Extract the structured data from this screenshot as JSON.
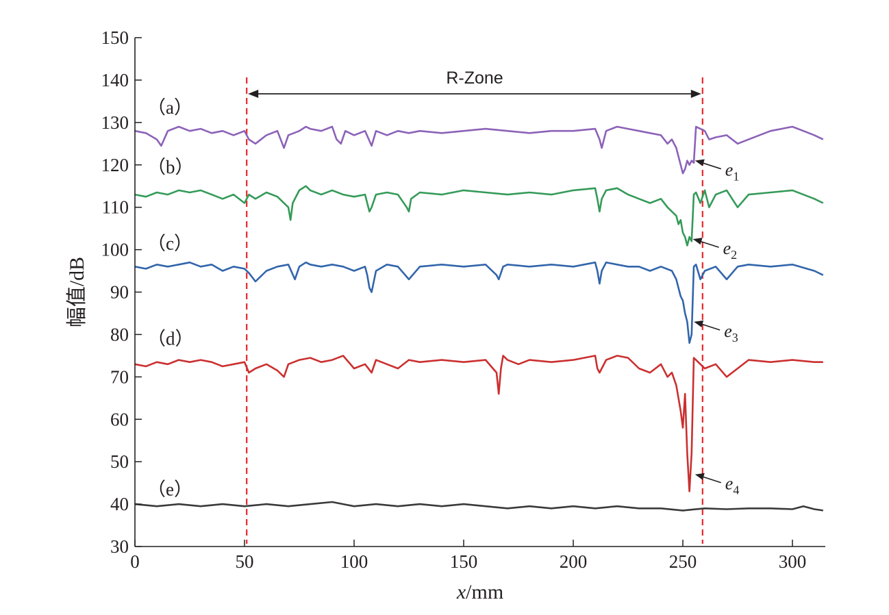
{
  "chart_data": {
    "type": "line",
    "xlabel_var": "x",
    "xlabel_unit": "/mm",
    "ylabel": "幅值/dB",
    "xlim": [
      0,
      315
    ],
    "ylim": [
      30,
      150
    ],
    "xticks": [
      0,
      50,
      100,
      150,
      200,
      250,
      300
    ],
    "yticks": [
      30,
      40,
      50,
      60,
      70,
      80,
      90,
      100,
      110,
      120,
      130,
      140,
      150
    ],
    "grid": false,
    "rzone": {
      "label": "R-Zone",
      "x_start": 51,
      "x_end": 259,
      "color": "#e8262a"
    },
    "series": [
      {
        "label": "（a）",
        "color": "#8c62b8",
        "label_value": 133.5,
        "defect": {
          "letter": "e",
          "sub": "1",
          "x": 254,
          "y": 121
        },
        "x": [
          0,
          5,
          10,
          12,
          15,
          20,
          25,
          30,
          35,
          40,
          45,
          50,
          52,
          55,
          60,
          65,
          68,
          70,
          75,
          78,
          80,
          85,
          90,
          92,
          94,
          96,
          100,
          105,
          108,
          110,
          115,
          120,
          125,
          130,
          140,
          150,
          160,
          170,
          180,
          190,
          200,
          210,
          212,
          213,
          215,
          220,
          225,
          230,
          235,
          240,
          243,
          245,
          247,
          248,
          250,
          251,
          252,
          253,
          254,
          255,
          256,
          258,
          260,
          262,
          265,
          270,
          275,
          280,
          290,
          300,
          305,
          310,
          314
        ],
        "y": [
          128,
          127.5,
          126,
          124.5,
          128,
          129,
          128,
          128.5,
          127.5,
          128,
          127,
          128,
          126,
          125,
          127,
          128,
          124,
          127,
          128,
          129,
          128.5,
          128,
          129,
          126,
          125,
          128,
          127,
          128,
          124.5,
          128,
          127,
          128,
          127.5,
          128,
          127.5,
          128,
          128.5,
          128,
          127.5,
          128,
          128,
          128.5,
          126,
          124,
          128,
          129,
          128.5,
          128,
          127.5,
          127,
          125,
          126,
          124,
          122,
          118,
          119,
          121,
          120,
          121,
          120.5,
          129,
          128.5,
          128,
          126,
          126.5,
          127,
          125,
          126,
          128,
          129,
          128,
          127,
          126
        ]
      },
      {
        "label": "（b）",
        "color": "#349a58",
        "label_value": 119.5,
        "defect": {
          "letter": "e",
          "sub": "2",
          "x": 253,
          "y": 102.5
        },
        "x": [
          0,
          5,
          10,
          15,
          20,
          25,
          30,
          35,
          40,
          45,
          50,
          52,
          55,
          60,
          65,
          70,
          71,
          72,
          75,
          78,
          80,
          85,
          90,
          95,
          100,
          105,
          107,
          108,
          110,
          115,
          120,
          124,
          125,
          126,
          130,
          140,
          150,
          160,
          170,
          180,
          190,
          200,
          210,
          211,
          212,
          213,
          215,
          220,
          225,
          230,
          235,
          240,
          243,
          245,
          247,
          248,
          249,
          250,
          251,
          252,
          253,
          254,
          255,
          256,
          258,
          260,
          262,
          265,
          270,
          275,
          280,
          290,
          300,
          310,
          314
        ],
        "y": [
          113,
          112.5,
          113.5,
          113,
          114,
          113.5,
          114,
          113,
          112,
          113,
          111,
          113,
          112,
          113.5,
          112.5,
          110,
          107,
          111,
          114,
          115,
          114,
          113,
          114,
          113,
          112.5,
          113,
          109,
          110,
          113,
          113.5,
          113,
          110,
          109,
          112,
          113.5,
          113,
          114,
          113.5,
          113,
          113.5,
          113,
          114,
          114.5,
          112,
          109,
          112,
          114,
          114.5,
          113,
          112,
          111,
          112,
          110,
          109,
          108,
          106,
          107,
          104,
          103,
          101,
          103,
          102,
          113,
          113.5,
          111,
          114,
          110,
          113,
          114,
          110,
          113,
          113.5,
          114,
          112,
          111
        ]
      },
      {
        "label": "（c）",
        "color": "#3165ab",
        "label_value": 101.5,
        "defect": {
          "letter": "e",
          "sub": "3",
          "x": 253.5,
          "y": 83
        },
        "x": [
          0,
          5,
          10,
          15,
          20,
          25,
          30,
          35,
          40,
          45,
          50,
          52,
          55,
          60,
          65,
          70,
          73,
          75,
          78,
          80,
          85,
          90,
          95,
          100,
          105,
          106,
          107,
          108,
          110,
          115,
          120,
          125,
          130,
          140,
          150,
          160,
          165,
          166,
          168,
          170,
          180,
          190,
          200,
          210,
          211,
          212,
          213,
          215,
          220,
          225,
          230,
          235,
          240,
          245,
          247,
          248,
          249,
          250,
          251,
          252,
          253,
          254,
          255,
          256,
          258,
          260,
          265,
          270,
          275,
          280,
          290,
          300,
          310,
          314
        ],
        "y": [
          96,
          95.5,
          96.5,
          96,
          96.5,
          97,
          96,
          96.5,
          95,
          96,
          95.5,
          94.5,
          92.5,
          95,
          96,
          96.5,
          93,
          96,
          97,
          96.5,
          96,
          96.5,
          96,
          95,
          96,
          94,
          91,
          90,
          95,
          96.5,
          96,
          93,
          96,
          96.5,
          96,
          96.5,
          94,
          93,
          96,
          96.5,
          96,
          96.5,
          96,
          97,
          95,
          92,
          95,
          97,
          96.5,
          96,
          96,
          95,
          96,
          95,
          93,
          91,
          89,
          88,
          85,
          83,
          78,
          80,
          96,
          96.5,
          93,
          95,
          96,
          93,
          96,
          96.5,
          96,
          96.5,
          95,
          94
        ]
      },
      {
        "label": "（d）",
        "color": "#cb2f2f",
        "label_value": 79,
        "defect": {
          "letter": "e",
          "sub": "4",
          "x": 254,
          "y": 47
        },
        "x": [
          0,
          5,
          10,
          15,
          20,
          25,
          30,
          35,
          40,
          45,
          50,
          52,
          55,
          60,
          65,
          68,
          70,
          75,
          80,
          85,
          90,
          95,
          100,
          105,
          108,
          110,
          115,
          120,
          125,
          130,
          140,
          150,
          160,
          165,
          166,
          167,
          168,
          170,
          175,
          180,
          190,
          200,
          210,
          211,
          212,
          215,
          220,
          225,
          230,
          235,
          240,
          243,
          245,
          247,
          248,
          249,
          250,
          251,
          252,
          253,
          254,
          255,
          256,
          258,
          260,
          265,
          270,
          275,
          280,
          290,
          300,
          310,
          314
        ],
        "y": [
          73,
          72.5,
          73.5,
          73,
          74,
          73.5,
          74,
          73.5,
          72.5,
          73,
          73.5,
          71,
          72,
          73,
          71.5,
          70,
          73,
          74,
          74.5,
          73.5,
          74,
          75,
          72,
          73,
          71,
          74,
          73,
          72,
          74,
          73.5,
          74,
          73.5,
          74,
          71,
          66,
          72,
          75,
          74,
          73,
          74,
          73.5,
          74,
          75,
          72,
          71,
          74,
          75,
          74.5,
          72,
          71,
          73,
          70,
          71,
          68,
          65,
          62,
          58,
          66,
          52,
          43,
          52,
          74.5,
          74,
          73,
          72,
          73,
          70,
          72,
          74,
          73.5,
          74,
          73.5,
          73.5
        ]
      },
      {
        "label": "（e）",
        "color": "#3a3a3a",
        "label_value": 43.5,
        "x": [
          0,
          10,
          20,
          30,
          40,
          50,
          60,
          70,
          80,
          90,
          100,
          110,
          120,
          130,
          140,
          150,
          160,
          170,
          180,
          190,
          200,
          210,
          220,
          230,
          240,
          250,
          260,
          270,
          280,
          290,
          300,
          305,
          310,
          314
        ],
        "y": [
          40,
          39.5,
          40,
          39.5,
          40,
          39.5,
          40,
          39.5,
          40,
          40.5,
          39.5,
          40,
          39.5,
          40,
          39.5,
          40,
          39.5,
          39,
          39.5,
          39,
          39.5,
          39,
          39.5,
          39,
          39,
          38.5,
          39,
          38.8,
          39,
          39,
          38.8,
          39.5,
          38.8,
          38.5
        ]
      }
    ]
  }
}
